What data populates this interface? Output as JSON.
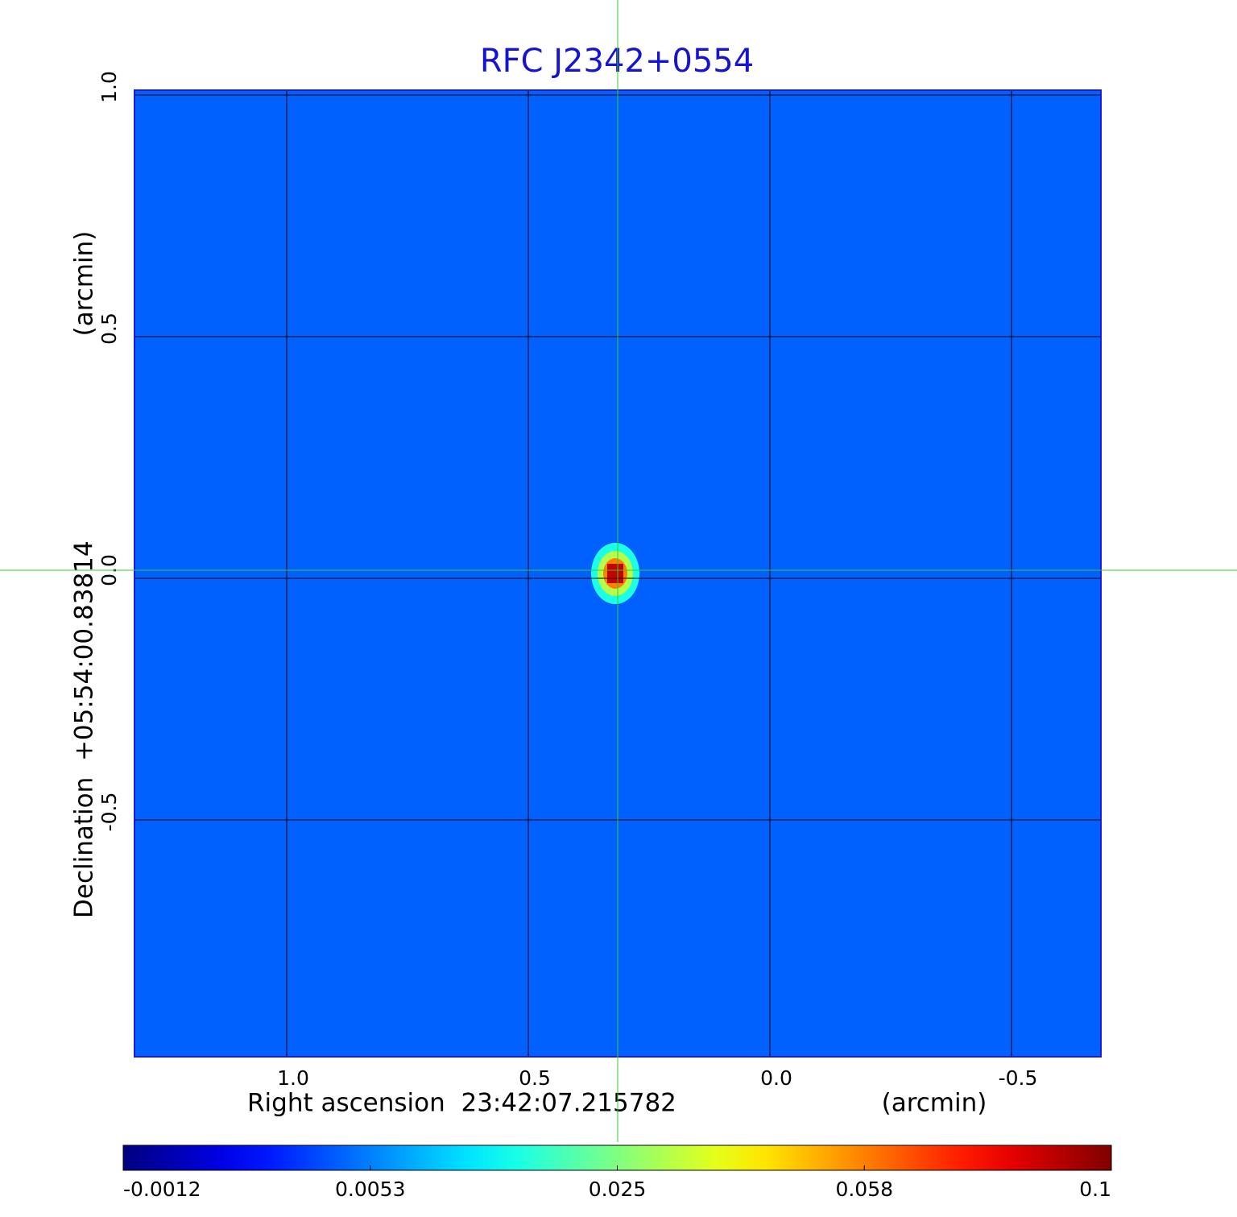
{
  "chart_data": {
    "type": "image",
    "title": "RFC J2342+0554",
    "x_label": "Right ascension  23:42:07.215782",
    "x_unit": "(arcmin)",
    "y_label": "Declination  +05:54:00.83814",
    "y_unit": "(arcmin)",
    "xlim": [
      1.315,
      -0.685
    ],
    "ylim": [
      -0.99,
      1.01
    ],
    "xticks": [
      {
        "value": 1,
        "label": "1.0"
      },
      0.5,
      {
        "value": 0,
        "label": "0.0"
      },
      -0.5
    ],
    "yticks": [
      {
        "value": 1,
        "label": "1.0"
      },
      0.5,
      {
        "value": 0,
        "label": "0.0"
      },
      -0.5
    ],
    "grid": true,
    "colormap": "jet",
    "colorbar": {
      "lim": [
        -0.0012,
        0.1
      ],
      "ticks": [
        -0.0012,
        0.0053,
        0.025,
        0.058,
        0.1
      ]
    },
    "points": [
      {
        "x": 0.32,
        "y": 0.01,
        "value": 0.1
      }
    ]
  }
}
